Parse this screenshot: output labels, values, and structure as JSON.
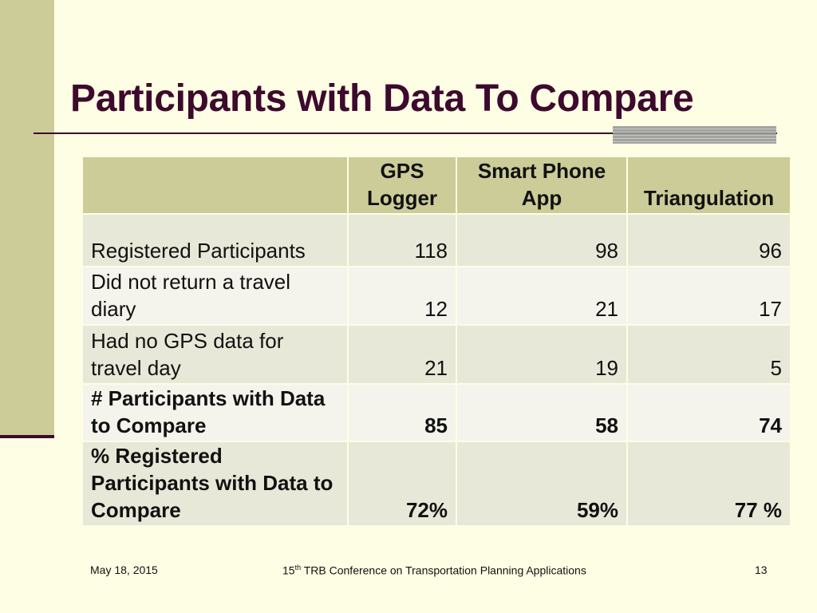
{
  "slide": {
    "title": "Participants with Data To Compare"
  },
  "table": {
    "headers": [
      "",
      "GPS Logger",
      "Smart Phone App",
      "Triangulation"
    ],
    "rows": [
      {
        "label": "Registered Participants",
        "values": [
          "118",
          "98",
          "96"
        ],
        "bold": false
      },
      {
        "label": "Did not return a travel diary",
        "values": [
          "12",
          "21",
          "17"
        ],
        "bold": false
      },
      {
        "label": "Had no GPS data for travel day",
        "values": [
          "21",
          "19",
          "5"
        ],
        "bold": false
      },
      {
        "label": "# Participants with Data to Compare",
        "values": [
          "85",
          "58",
          "74"
        ],
        "bold": true
      },
      {
        "label": "% Registered Participants with Data to Compare",
        "values": [
          "72%",
          "59%",
          "77 %"
        ],
        "bold": true
      }
    ]
  },
  "footer": {
    "date": "May 18, 2015",
    "conf_number": "15",
    "conf_suffix": "th",
    "conf_text": " TRB Conference on Transportation Planning Applications",
    "page_number": "13"
  },
  "colors": {
    "background": "#fefee4",
    "band": "#cccc99",
    "title": "#3d0a2e"
  }
}
